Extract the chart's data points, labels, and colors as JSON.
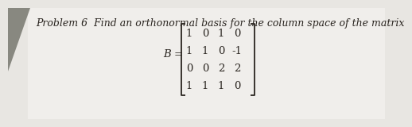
{
  "title_text": "Problem 6  Find an orthonormal basis for the column space of the matrix",
  "B_label": "B =",
  "matrix": [
    [
      "1",
      "0",
      "1",
      "0"
    ],
    [
      "1",
      "1",
      "0",
      "-1"
    ],
    [
      "0",
      "0",
      "2",
      "2"
    ],
    [
      "1",
      "1",
      "1",
      "0"
    ]
  ],
  "bg_color": "#e8e6e2",
  "page_color": "#f0eeeb",
  "text_color": "#2a2520",
  "title_fontsize": 9.0,
  "matrix_fontsize": 9.5,
  "B_label_fontsize": 9.5,
  "dark_corner_color": "#707070"
}
